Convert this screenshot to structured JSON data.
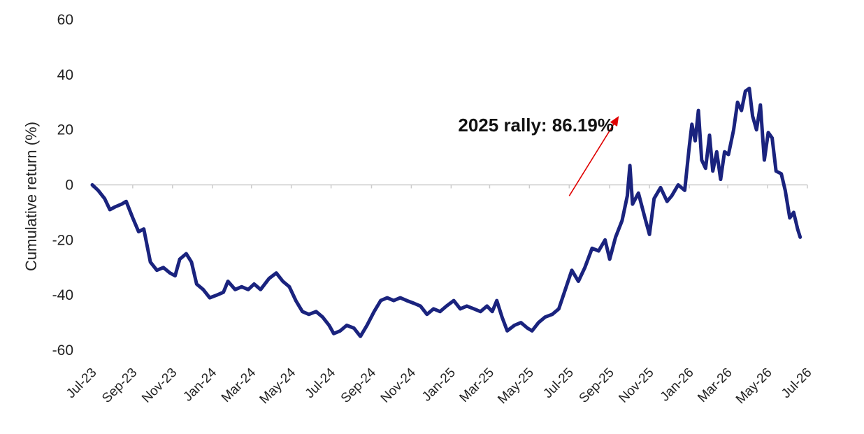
{
  "chart_data": {
    "type": "line",
    "title": "",
    "xlabel": "",
    "ylabel": "Cumulative return (%)",
    "ylim": [
      -60,
      60
    ],
    "yticks": [
      60,
      40,
      20,
      0,
      -20,
      -40,
      -60
    ],
    "x_tick_labels": [
      "Jul-23",
      "Sep-23",
      "Nov-23",
      "Jan-24",
      "Mar-24",
      "May-24",
      "Jul-24",
      "Sep-24",
      "Nov-24",
      "Jan-25",
      "Mar-25",
      "May-25",
      "Jul-25",
      "Sep-25",
      "Nov-25",
      "Jan-26",
      "Mar-26",
      "May-26",
      "Jul-26"
    ],
    "grid": false,
    "line_color": "#1a237e",
    "annotation": {
      "text": "2025 rally: 86.19%",
      "arrow_color": "#e00000",
      "arrow_from": [
        "2025-07-01",
        -4
      ],
      "arrow_to": [
        "2025-09-15",
        25
      ]
    },
    "series": [
      {
        "values": [
          [
            "2023-07-01",
            0
          ],
          [
            "2023-07-10",
            -2
          ],
          [
            "2023-07-20",
            -5
          ],
          [
            "2023-07-28",
            -9
          ],
          [
            "2023-08-05",
            -8
          ],
          [
            "2023-08-15",
            -7
          ],
          [
            "2023-08-22",
            -6
          ],
          [
            "2023-09-01",
            -12
          ],
          [
            "2023-09-10",
            -17
          ],
          [
            "2023-09-18",
            -16
          ],
          [
            "2023-09-28",
            -28
          ],
          [
            "2023-10-08",
            -31
          ],
          [
            "2023-10-18",
            -30
          ],
          [
            "2023-10-28",
            -32
          ],
          [
            "2023-11-05",
            -33
          ],
          [
            "2023-11-12",
            -27
          ],
          [
            "2023-11-22",
            -25
          ],
          [
            "2023-11-30",
            -28
          ],
          [
            "2023-12-08",
            -36
          ],
          [
            "2023-12-18",
            -38
          ],
          [
            "2023-12-28",
            -41
          ],
          [
            "2024-01-08",
            -40
          ],
          [
            "2024-01-18",
            -39
          ],
          [
            "2024-01-25",
            -35
          ],
          [
            "2024-02-05",
            -38
          ],
          [
            "2024-02-15",
            -37
          ],
          [
            "2024-02-25",
            -38
          ],
          [
            "2024-03-05",
            -36
          ],
          [
            "2024-03-15",
            -38
          ],
          [
            "2024-03-28",
            -34
          ],
          [
            "2024-04-08",
            -32
          ],
          [
            "2024-04-18",
            -35
          ],
          [
            "2024-04-28",
            -37
          ],
          [
            "2024-05-08",
            -42
          ],
          [
            "2024-05-18",
            -46
          ],
          [
            "2024-05-28",
            -47
          ],
          [
            "2024-06-08",
            -46
          ],
          [
            "2024-06-18",
            -48
          ],
          [
            "2024-06-28",
            -51
          ],
          [
            "2024-07-05",
            -54
          ],
          [
            "2024-07-15",
            -53
          ],
          [
            "2024-07-25",
            -51
          ],
          [
            "2024-08-05",
            -52
          ],
          [
            "2024-08-15",
            -55
          ],
          [
            "2024-08-25",
            -51
          ],
          [
            "2024-09-05",
            -46
          ],
          [
            "2024-09-15",
            -42
          ],
          [
            "2024-09-25",
            -41
          ],
          [
            "2024-10-05",
            -42
          ],
          [
            "2024-10-15",
            -41
          ],
          [
            "2024-10-25",
            -42
          ],
          [
            "2024-11-05",
            -43
          ],
          [
            "2024-11-15",
            -44
          ],
          [
            "2024-11-25",
            -47
          ],
          [
            "2024-12-05",
            -45
          ],
          [
            "2024-12-15",
            -46
          ],
          [
            "2024-12-25",
            -44
          ],
          [
            "2025-01-05",
            -42
          ],
          [
            "2025-01-15",
            -45
          ],
          [
            "2025-01-25",
            -44
          ],
          [
            "2025-02-05",
            -45
          ],
          [
            "2025-02-15",
            -46
          ],
          [
            "2025-02-25",
            -44
          ],
          [
            "2025-03-05",
            -46
          ],
          [
            "2025-03-12",
            -42
          ],
          [
            "2025-03-20",
            -48
          ],
          [
            "2025-03-28",
            -53
          ],
          [
            "2025-04-08",
            -51
          ],
          [
            "2025-04-18",
            -50
          ],
          [
            "2025-04-28",
            -52
          ],
          [
            "2025-05-05",
            -53
          ],
          [
            "2025-05-15",
            -50
          ],
          [
            "2025-05-25",
            -48
          ],
          [
            "2025-06-05",
            -47
          ],
          [
            "2025-06-15",
            -45
          ],
          [
            "2025-06-25",
            -38
          ],
          [
            "2025-07-05",
            -31
          ],
          [
            "2025-07-15",
            -35
          ],
          [
            "2025-07-25",
            -30
          ],
          [
            "2025-08-05",
            -23
          ],
          [
            "2025-08-15",
            -24
          ],
          [
            "2025-08-25",
            -20
          ],
          [
            "2025-09-01",
            -27
          ],
          [
            "2025-09-10",
            -19
          ],
          [
            "2025-09-20",
            -13
          ],
          [
            "2025-09-28",
            -4
          ],
          [
            "2025-10-02",
            7
          ],
          [
            "2025-10-06",
            -7
          ],
          [
            "2025-10-15",
            -3
          ],
          [
            "2025-10-25",
            -12
          ],
          [
            "2025-11-01",
            -18
          ],
          [
            "2025-11-08",
            -5
          ],
          [
            "2025-11-18",
            -1
          ],
          [
            "2025-11-28",
            -6
          ],
          [
            "2025-12-05",
            -4
          ],
          [
            "2025-12-15",
            0
          ],
          [
            "2025-12-25",
            -2
          ],
          [
            "2026-01-01",
            14
          ],
          [
            "2026-01-05",
            22
          ],
          [
            "2026-01-10",
            16
          ],
          [
            "2026-01-15",
            27
          ],
          [
            "2026-01-20",
            9
          ],
          [
            "2026-01-26",
            6
          ],
          [
            "2026-02-01",
            18
          ],
          [
            "2026-02-06",
            5
          ],
          [
            "2026-02-12",
            12
          ],
          [
            "2026-02-18",
            2
          ],
          [
            "2026-02-24",
            12
          ],
          [
            "2026-03-02",
            11
          ],
          [
            "2026-03-10",
            20
          ],
          [
            "2026-03-16",
            30
          ],
          [
            "2026-03-22",
            27
          ],
          [
            "2026-03-28",
            34
          ],
          [
            "2026-04-03",
            35
          ],
          [
            "2026-04-08",
            25
          ],
          [
            "2026-04-14",
            20
          ],
          [
            "2026-04-20",
            29
          ],
          [
            "2026-04-26",
            9
          ],
          [
            "2026-05-02",
            19
          ],
          [
            "2026-05-08",
            17
          ],
          [
            "2026-05-14",
            5
          ],
          [
            "2026-05-22",
            4
          ],
          [
            "2026-05-28",
            -2
          ],
          [
            "2026-06-04",
            -12
          ],
          [
            "2026-06-10",
            -10
          ],
          [
            "2026-06-16",
            -16
          ],
          [
            "2026-06-20",
            -19
          ]
        ]
      }
    ]
  }
}
